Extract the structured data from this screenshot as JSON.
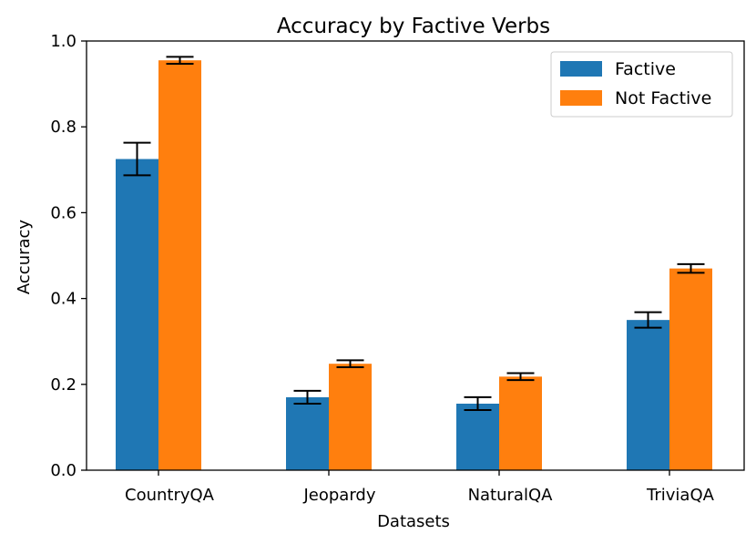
{
  "chart_data": {
    "type": "bar",
    "title": "Accuracy by Factive Verbs",
    "xlabel": "Datasets",
    "ylabel": "Accuracy",
    "categories": [
      "CountryQA",
      "Jeopardy",
      "NaturalQA",
      "TriviaQA"
    ],
    "ylim": [
      0,
      1.0
    ],
    "yticks": [
      "0.0",
      "0.2",
      "0.4",
      "0.6",
      "0.8",
      "1.0"
    ],
    "legend_position": "top-right",
    "grid": false,
    "series": [
      {
        "name": "Factive",
        "color": "#1f77b4",
        "values": [
          0.725,
          0.17,
          0.155,
          0.35
        ],
        "errors": [
          0.038,
          0.015,
          0.015,
          0.018
        ]
      },
      {
        "name": "Not Factive",
        "color": "#ff7f0e",
        "values": [
          0.955,
          0.248,
          0.218,
          0.47
        ],
        "errors": [
          0.008,
          0.008,
          0.008,
          0.01
        ]
      }
    ]
  }
}
